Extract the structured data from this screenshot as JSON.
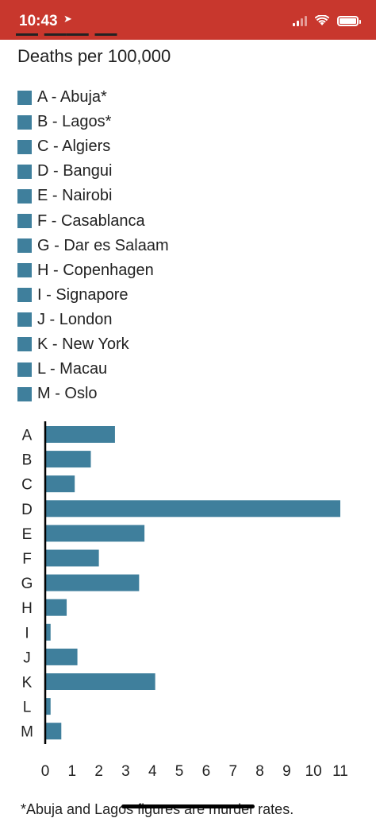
{
  "status_bar": {
    "time": "10:43",
    "location_icon": "location-arrow-icon",
    "signal_icon": "cellular-signal-icon",
    "wifi_icon": "wifi-icon",
    "battery_icon": "battery-icon"
  },
  "colors": {
    "status_bar": "#c8372d",
    "bar": "#3f7f9c"
  },
  "subtitle": "Deaths per 100,000",
  "legend": [
    {
      "code": "A",
      "label": "A - Abuja*"
    },
    {
      "code": "B",
      "label": "B - Lagos*"
    },
    {
      "code": "C",
      "label": "C - Algiers"
    },
    {
      "code": "D",
      "label": "D - Bangui"
    },
    {
      "code": "E",
      "label": "E - Nairobi"
    },
    {
      "code": "F",
      "label": "F - Casablanca"
    },
    {
      "code": "G",
      "label": "G - Dar es Salaam"
    },
    {
      "code": "H",
      "label": "H - Copenhagen"
    },
    {
      "code": "I",
      "label": "I - Signapore"
    },
    {
      "code": "J",
      "label": "J - London"
    },
    {
      "code": "K",
      "label": "K - New York"
    },
    {
      "code": "L",
      "label": "L - Macau"
    },
    {
      "code": "M",
      "label": "M - Oslo"
    }
  ],
  "chart_data": {
    "type": "bar",
    "orientation": "horizontal",
    "categories": [
      "A",
      "B",
      "C",
      "D",
      "E",
      "F",
      "G",
      "H",
      "I",
      "J",
      "K",
      "L",
      "M"
    ],
    "values": [
      2.6,
      1.7,
      1.1,
      11.0,
      3.7,
      2.0,
      3.5,
      0.8,
      0.2,
      1.2,
      4.1,
      0.2,
      0.6
    ],
    "xlim": [
      0,
      11
    ],
    "xticks": [
      0,
      1,
      2,
      3,
      4,
      5,
      6,
      7,
      8,
      9,
      10,
      11
    ],
    "ylabel": "Deaths per 100,000",
    "grid": false,
    "legend_position": "top"
  },
  "footnote": "*Abuja and Lagos figures are murder rates."
}
